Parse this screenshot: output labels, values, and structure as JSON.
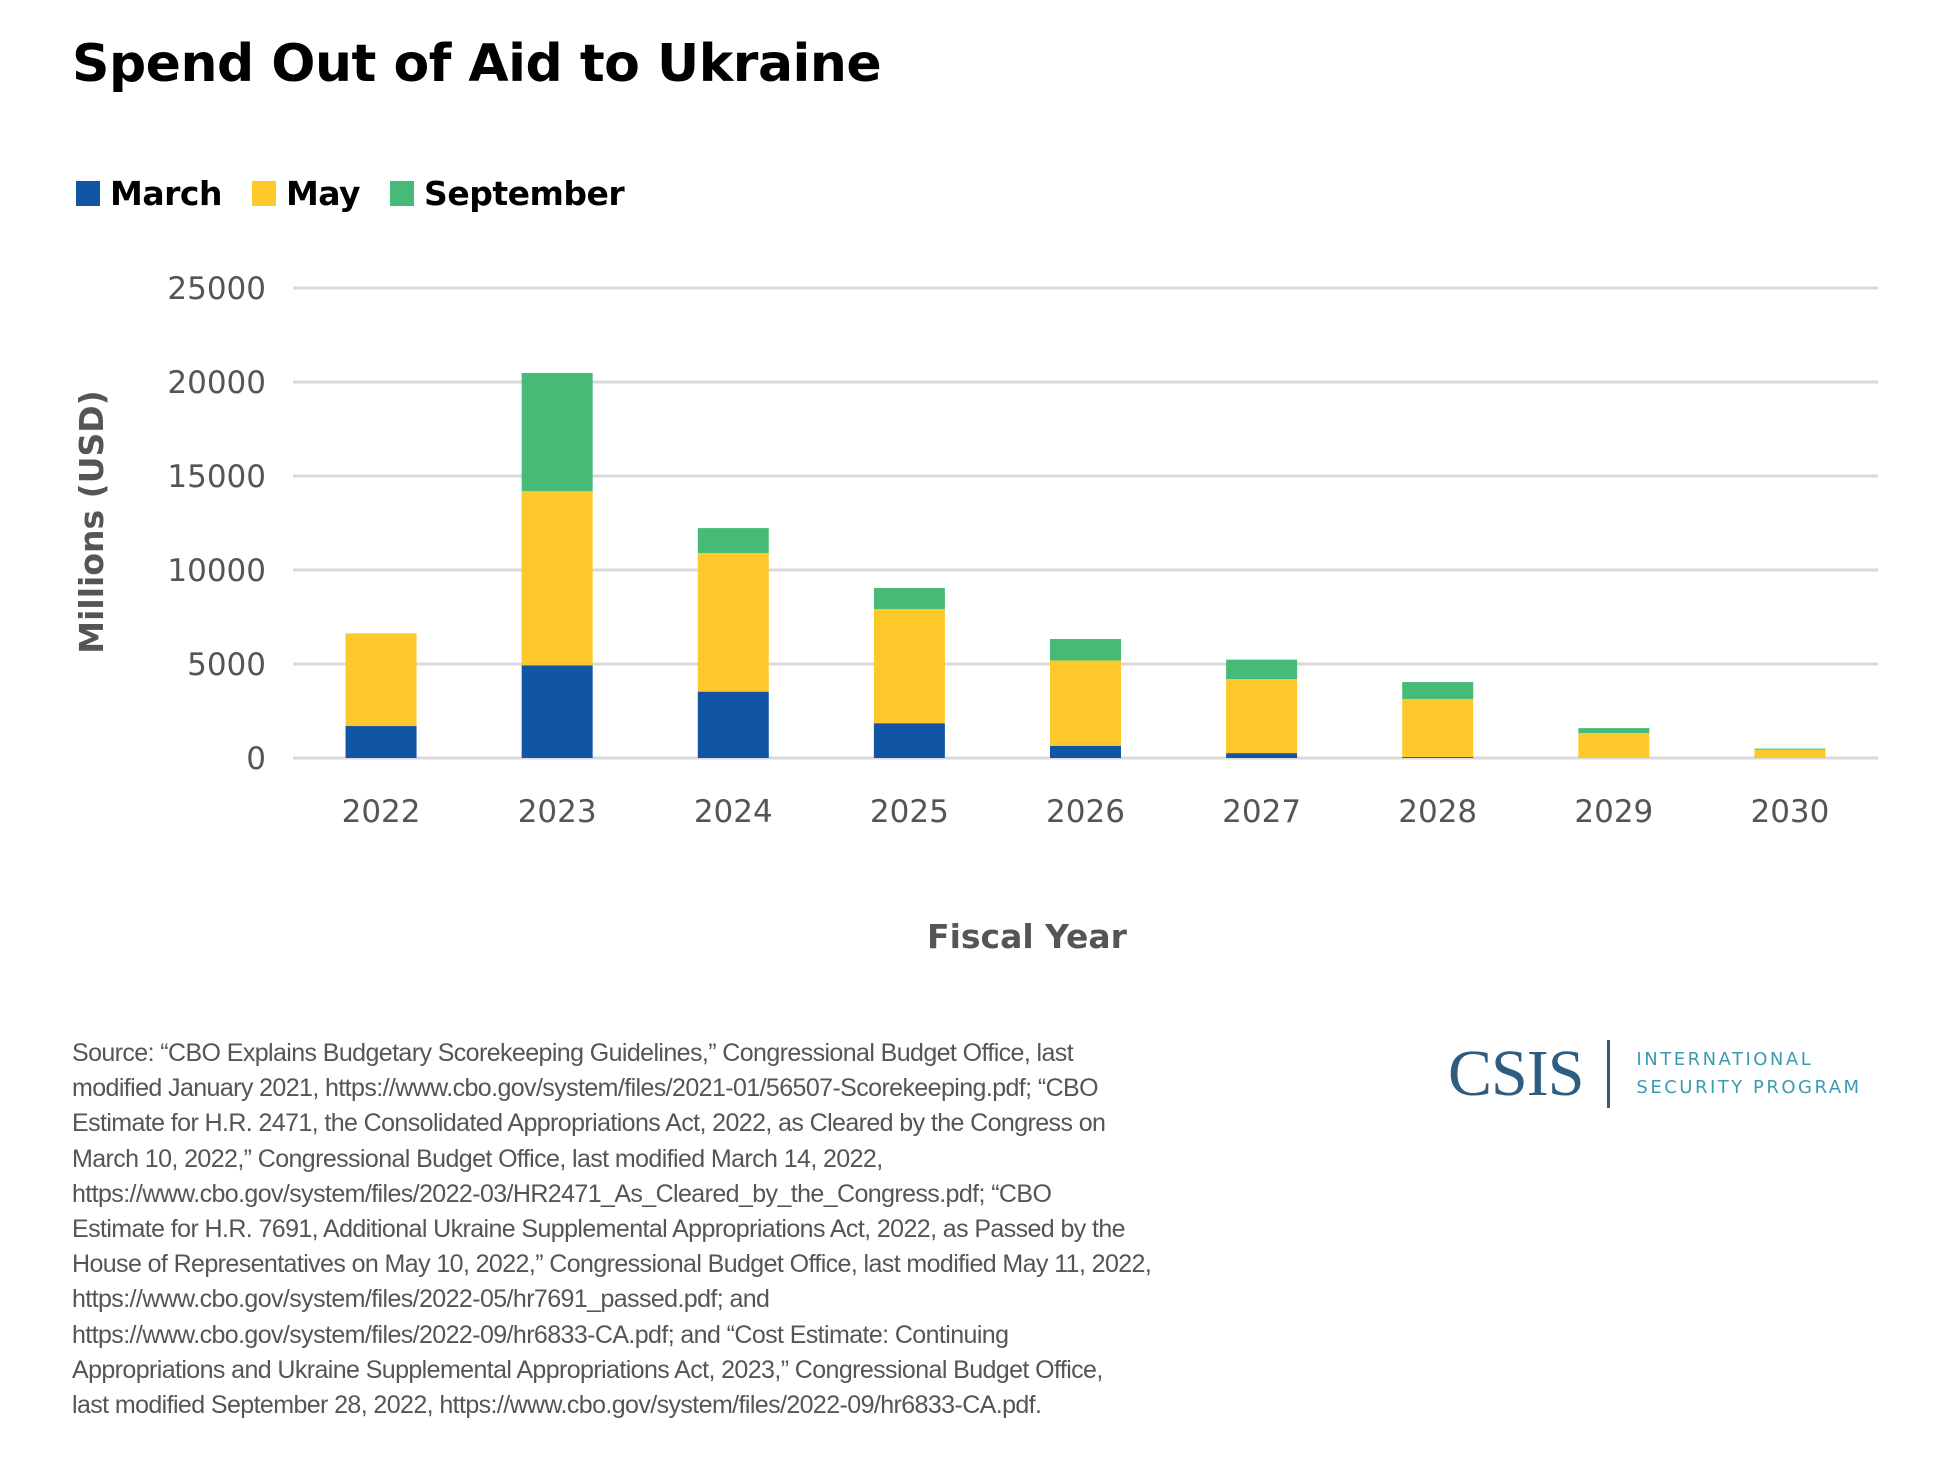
{
  "title": "Spend Out of Aid to Ukraine",
  "colors": {
    "march": "#1155a5",
    "may": "#fdc82a",
    "september": "#46bb78",
    "grid": "#d9d9d9",
    "text": "#555555"
  },
  "chart_data": {
    "type": "bar",
    "stacked": true,
    "title": "Spend Out of Aid to Ukraine",
    "xlabel": "Fiscal Year",
    "ylabel": "Millions (USD)",
    "ylim": [
      0,
      25000
    ],
    "yticks": [
      0,
      5000,
      10000,
      15000,
      20000,
      25000
    ],
    "ytick_labels": [
      "0",
      "5000",
      "10000",
      "15000",
      "20000",
      "25000"
    ],
    "grid": true,
    "legend_position": "top-left",
    "categories": [
      "2022",
      "2023",
      "2024",
      "2025",
      "2026",
      "2027",
      "2028",
      "2029",
      "2030"
    ],
    "series": [
      {
        "name": "March",
        "color": "#1155a5",
        "values": [
          1700,
          4930,
          3530,
          1850,
          650,
          260,
          50,
          0,
          0
        ]
      },
      {
        "name": "May",
        "color": "#fdc82a",
        "values": [
          4930,
          9260,
          7370,
          6070,
          4540,
          3940,
          3090,
          1330,
          450
        ]
      },
      {
        "name": "September",
        "color": "#46bb78",
        "values": [
          0,
          6290,
          1330,
          1120,
          1140,
          1030,
          900,
          260,
          50
        ]
      }
    ]
  },
  "legend": [
    {
      "label": "March",
      "color": "#1155a5"
    },
    {
      "label": "May",
      "color": "#fdc82a"
    },
    {
      "label": "September",
      "color": "#46bb78"
    }
  ],
  "footer": {
    "lines": [
      "Source: “CBO Explains Budgetary Scorekeeping Guidelines,” Congressional Budget Office, last",
      "modified January 2021, https://www.cbo.gov/system/files/2021-01/56507-Scorekeeping.pdf; “CBO",
      "Estimate for H.R. 2471, the Consolidated Appropriations Act, 2022, as Cleared by the Congress on",
      "March 10, 2022,” Congressional Budget Office, last modified March 14, 2022,",
      "https://www.cbo.gov/system/files/2022-03/HR2471_As_Cleared_by_the_Congress.pdf; “CBO",
      "Estimate for H.R. 7691, Additional Ukraine Supplemental Appropriations Act, 2022, as Passed by the",
      "House of Representatives on May 10, 2022,” Congressional Budget Office, last modified May 11, 2022,",
      "https://www.cbo.gov/system/files/2022-05/hr7691_passed.pdf; and",
      "https://www.cbo.gov/system/files/2022-09/hr6833-CA.pdf; and “Cost Estimate: Continuing",
      "Appropriations and Ukraine Supplemental Appropriations Act, 2023,” Congressional Budget Office,",
      "last modified September 28, 2022, https://www.cbo.gov/system/files/2022-09/hr6833-CA.pdf."
    ]
  },
  "logo": {
    "main": "CSIS",
    "sub_line1": "INTERNATIONAL",
    "sub_line2": "SECURITY PROGRAM"
  }
}
